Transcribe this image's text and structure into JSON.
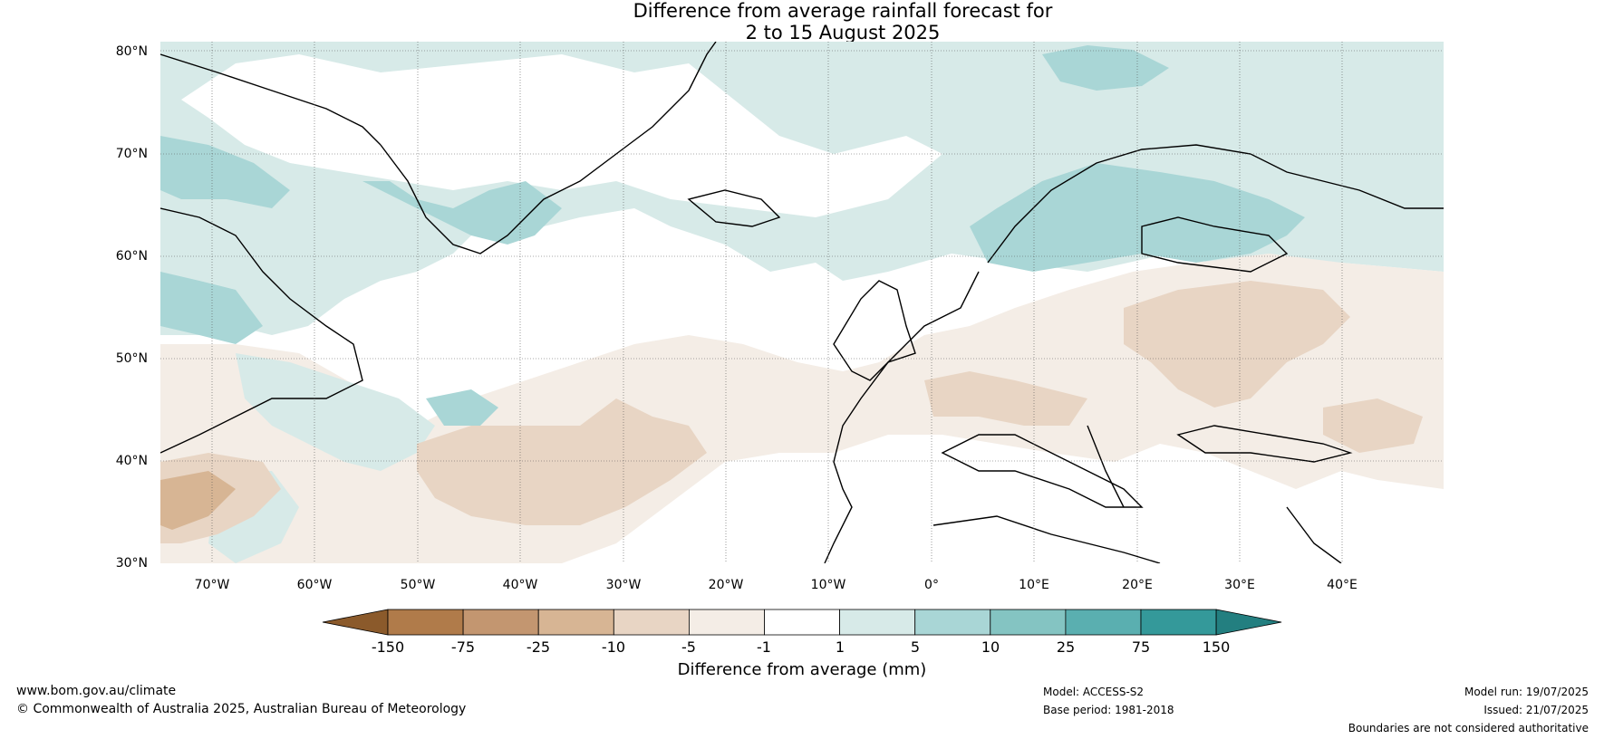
{
  "title_line1": "Difference from average rainfall forecast for",
  "title_line2": "2 to 15 August 2025",
  "lat_labels": [
    "80°N",
    "70°N",
    "60°N",
    "50°N",
    "40°N",
    "30°N"
  ],
  "lon_labels": [
    "70°W",
    "60°W",
    "50°W",
    "40°W",
    "30°W",
    "20°W",
    "10°W",
    "0°",
    "10°E",
    "20°E",
    "30°E",
    "40°E"
  ],
  "colorbar": {
    "ticks": [
      "-150",
      "-75",
      "-25",
      "-10",
      "-5",
      "-1",
      "1",
      "5",
      "10",
      "25",
      "75",
      "150"
    ],
    "label": "Difference from average (mm)",
    "colors": [
      "#8b5a2b",
      "#b07b4a",
      "#c39670",
      "#d7b594",
      "#e8d5c4",
      "#f4ede6",
      "#ffffff",
      "#d7eae8",
      "#a9d6d6",
      "#84c4c2",
      "#5aafb0",
      "#34999a",
      "#237f80"
    ]
  },
  "footer": {
    "website": "www.bom.gov.au/climate",
    "copyright": "© Commonwealth of Australia 2025, Australian Bureau of Meteorology",
    "model": "Model: ACCESS-S2",
    "base_period": "Base period: 1981-2018",
    "model_run": "Model run: 19/07/2025",
    "issued": "Issued: 21/07/2025",
    "disclaimer": "Boundaries are not considered authoritative"
  }
}
